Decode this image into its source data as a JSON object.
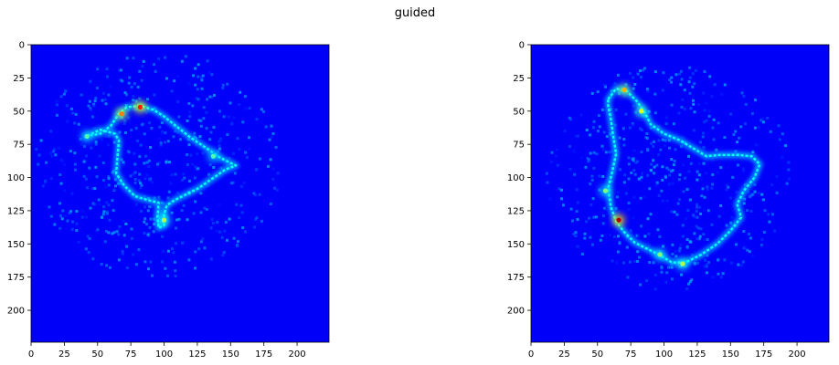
{
  "figure": {
    "suptitle": "guided"
  },
  "chart_data": [
    {
      "type": "heatmap",
      "colormap": "jet",
      "xlim": [
        0,
        224
      ],
      "ylim": [
        224,
        0
      ],
      "x_ticks": [
        0,
        25,
        50,
        75,
        100,
        125,
        150,
        175,
        200
      ],
      "y_ticks": [
        0,
        25,
        50,
        75,
        100,
        125,
        150,
        175,
        200
      ],
      "background_value": 0.12,
      "outline": [
        [
          41,
          69
        ],
        [
          52,
          67
        ],
        [
          60,
          61
        ],
        [
          66,
          52
        ],
        [
          72,
          47
        ],
        [
          82,
          46
        ],
        [
          92,
          49
        ],
        [
          100,
          54
        ],
        [
          110,
          62
        ],
        [
          120,
          70
        ],
        [
          132,
          78
        ],
        [
          142,
          85
        ],
        [
          150,
          89
        ],
        [
          154,
          91
        ],
        [
          146,
          94
        ],
        [
          136,
          101
        ],
        [
          126,
          108
        ],
        [
          116,
          113
        ],
        [
          108,
          117
        ],
        [
          102,
          121
        ],
        [
          100,
          128
        ],
        [
          100,
          136
        ],
        [
          96,
          138
        ],
        [
          95,
          130
        ],
        [
          96,
          119
        ],
        [
          88,
          117
        ],
        [
          78,
          114
        ],
        [
          70,
          106
        ],
        [
          64,
          97
        ],
        [
          65,
          84
        ],
        [
          66,
          72
        ],
        [
          63,
          67
        ],
        [
          52,
          64
        ]
      ],
      "hotspots": [
        [
          82,
          47,
          0.85
        ],
        [
          68,
          52,
          0.75
        ],
        [
          100,
          132,
          0.55
        ],
        [
          42,
          69,
          0.45
        ],
        [
          137,
          84,
          0.45
        ]
      ]
    },
    {
      "type": "heatmap",
      "colormap": "jet",
      "xlim": [
        0,
        224
      ],
      "ylim": [
        224,
        0
      ],
      "x_ticks": [
        0,
        25,
        50,
        75,
        100,
        125,
        150,
        175,
        200
      ],
      "y_ticks": [
        0,
        25,
        50,
        75,
        100,
        125,
        150,
        175,
        200
      ],
      "background_value": 0.12,
      "outline": [
        [
          58,
          41
        ],
        [
          64,
          33
        ],
        [
          72,
          35
        ],
        [
          80,
          43
        ],
        [
          86,
          52
        ],
        [
          90,
          60
        ],
        [
          100,
          67
        ],
        [
          112,
          72
        ],
        [
          122,
          78
        ],
        [
          132,
          84
        ],
        [
          142,
          83
        ],
        [
          156,
          83
        ],
        [
          166,
          84
        ],
        [
          172,
          90
        ],
        [
          168,
          100
        ],
        [
          160,
          110
        ],
        [
          155,
          120
        ],
        [
          158,
          130
        ],
        [
          150,
          140
        ],
        [
          140,
          150
        ],
        [
          128,
          158
        ],
        [
          116,
          164
        ],
        [
          106,
          164
        ],
        [
          96,
          158
        ],
        [
          86,
          153
        ],
        [
          78,
          149
        ],
        [
          70,
          141
        ],
        [
          64,
          133
        ],
        [
          60,
          122
        ],
        [
          58,
          108
        ],
        [
          61,
          96
        ],
        [
          64,
          82
        ],
        [
          62,
          70
        ],
        [
          60,
          56
        ],
        [
          58,
          46
        ]
      ],
      "hotspots": [
        [
          66,
          132,
          0.95
        ],
        [
          70,
          34,
          0.7
        ],
        [
          83,
          50,
          0.6
        ],
        [
          114,
          165,
          0.55
        ],
        [
          56,
          110,
          0.5
        ],
        [
          97,
          158,
          0.5
        ]
      ]
    }
  ]
}
